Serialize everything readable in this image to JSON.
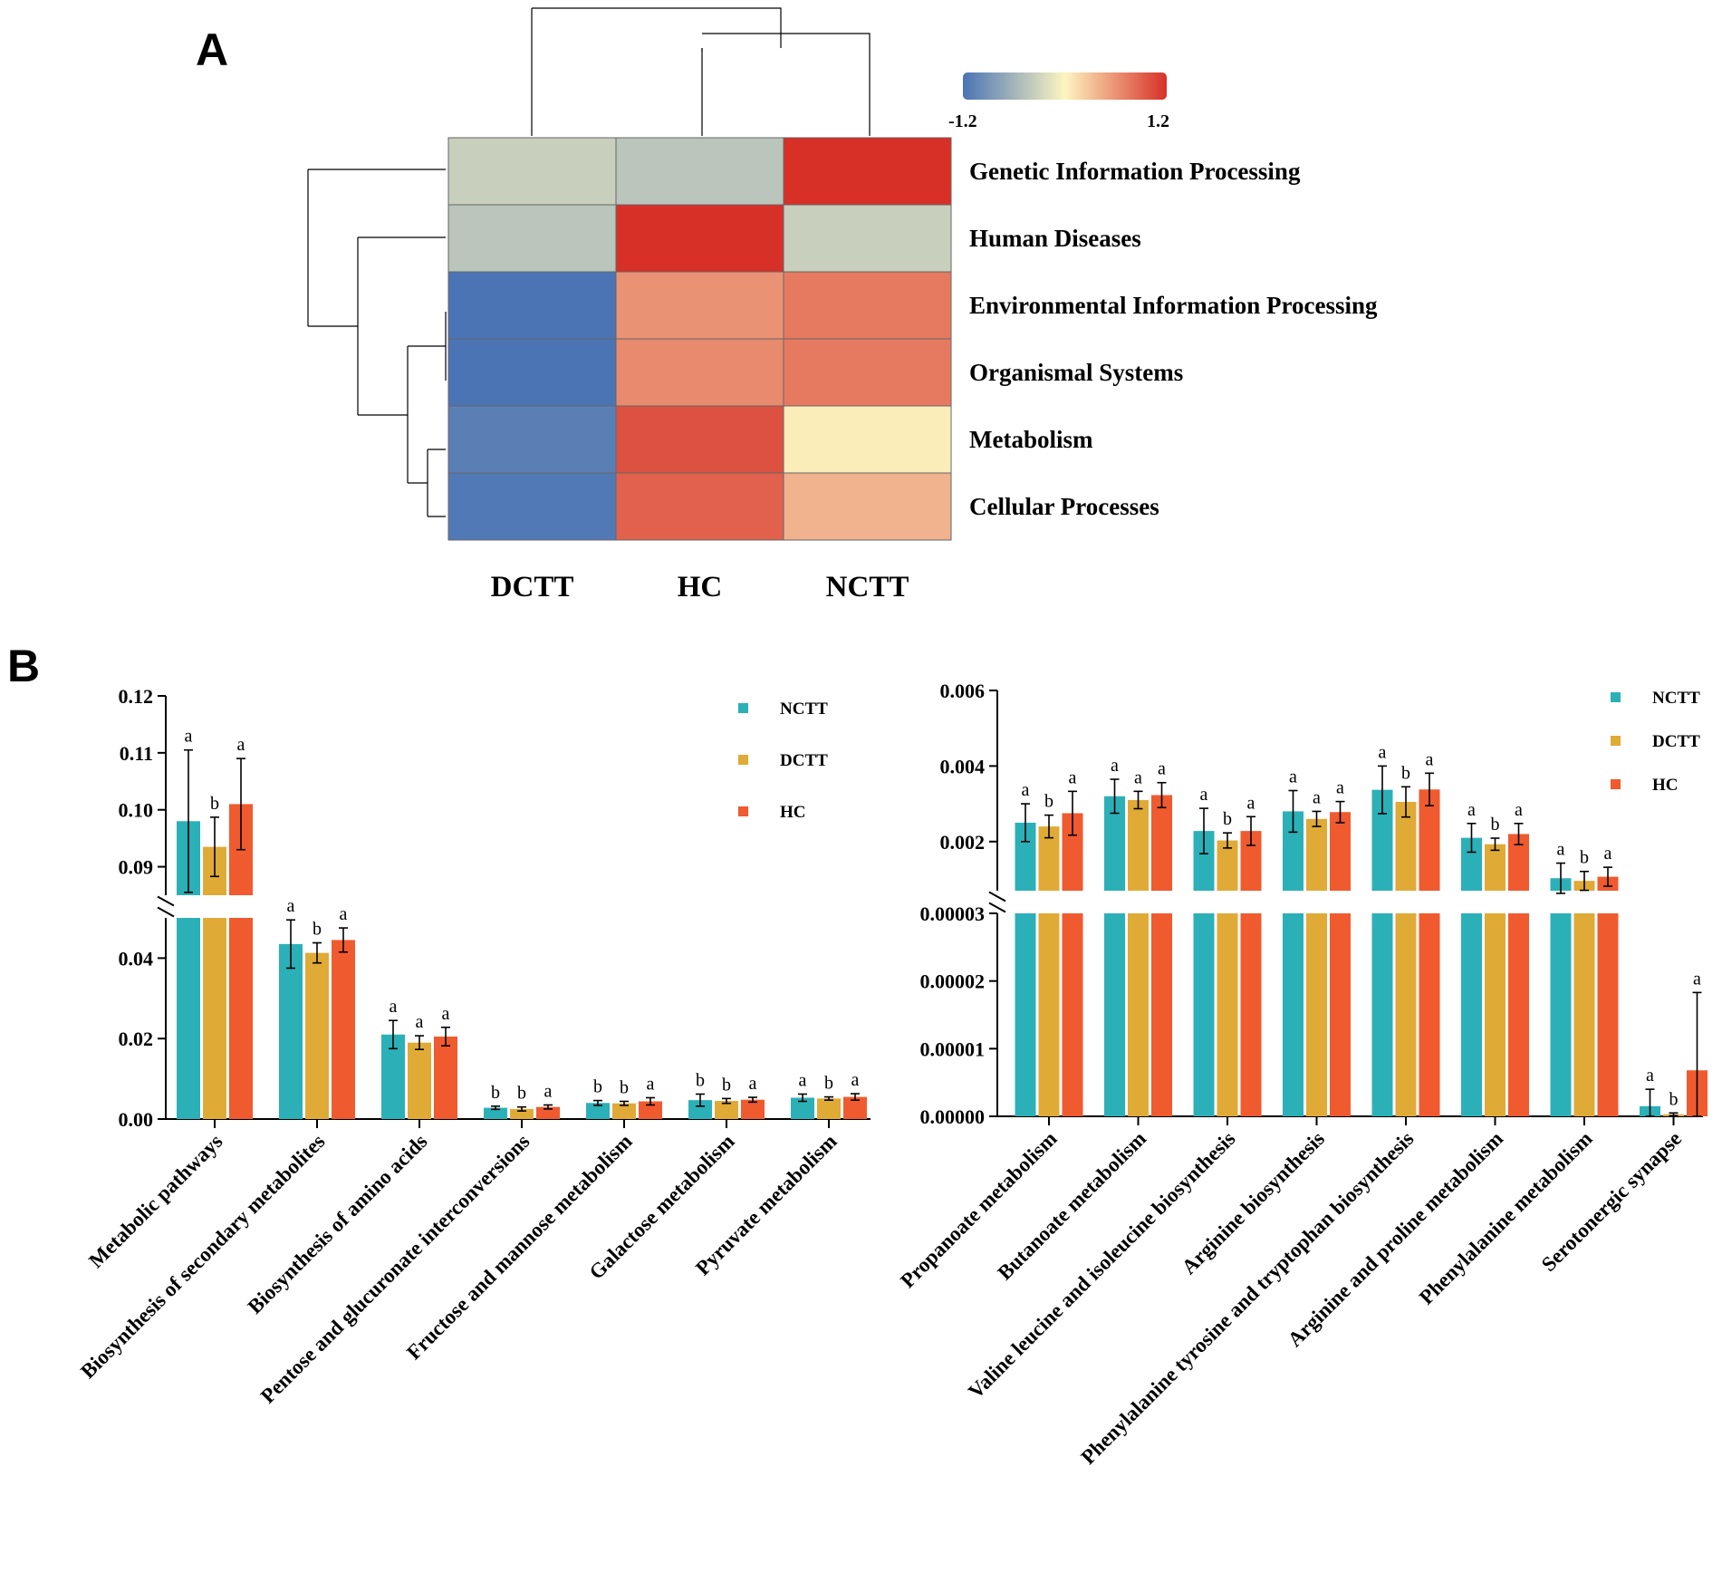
{
  "panels": {
    "a_label": "A",
    "b_label": "B"
  },
  "heatmap": {
    "columns": [
      "DCTT",
      "HC",
      "NCTT"
    ],
    "rows": [
      "Genetic Information Processing",
      "Human Diseases",
      "Environmental Information Processing",
      "Organismal Systems",
      "Metabolism",
      "Cellular Processes"
    ],
    "values": [
      [
        -0.35,
        -0.45,
        1.2
      ],
      [
        -0.45,
        1.2,
        -0.35
      ],
      [
        -1.2,
        0.6,
        0.75
      ],
      [
        -1.2,
        0.65,
        0.75
      ],
      [
        -1.1,
        1.0,
        0.05
      ],
      [
        -1.15,
        0.9,
        0.4
      ]
    ],
    "colorbar": {
      "min_label": "-1.2",
      "max_label": "1.2",
      "colors": [
        "#4a74b4",
        "#fdf5c0",
        "#d73027"
      ]
    }
  },
  "chart_data": [
    {
      "type": "bar",
      "title": "",
      "xlabel": "",
      "ylabel": "",
      "y_segments": [
        {
          "range": [
            0.0,
            0.05
          ],
          "ticks": [
            "0.00",
            "0.02",
            "0.04"
          ],
          "tick_values": [
            0.0,
            0.02,
            0.04
          ]
        },
        {
          "range": [
            0.085,
            0.12
          ],
          "ticks": [
            "0.09",
            "0.10",
            "0.11",
            "0.12"
          ],
          "tick_values": [
            0.09,
            0.1,
            0.11,
            0.12
          ]
        }
      ],
      "categories": [
        "Metabolic pathways",
        "Biosynthesis of secondary metabolites",
        "Biosynthesis of amino acids",
        "Pentose and glucuronate interconversions",
        "Fructose and mannose metabolism",
        "Galactose metabolism",
        "Pyruvate metabolism"
      ],
      "series": [
        {
          "name": "NCTT",
          "color": "#2bb0b8",
          "values": [
            0.098,
            0.0435,
            0.021,
            0.0028,
            0.004,
            0.0047,
            0.0053
          ],
          "errors": [
            0.0125,
            0.006,
            0.0035,
            0.0004,
            0.0006,
            0.0015,
            0.0009
          ],
          "letters": [
            "a",
            "a",
            "a",
            "b",
            "b",
            "b",
            "a"
          ]
        },
        {
          "name": "DCTT",
          "color": "#e0aa36",
          "values": [
            0.0935,
            0.0413,
            0.019,
            0.0025,
            0.0039,
            0.0045,
            0.0051
          ],
          "errors": [
            0.0052,
            0.0025,
            0.0017,
            0.0005,
            0.0005,
            0.0006,
            0.0004
          ],
          "letters": [
            "b",
            "b",
            "a",
            "b",
            "b",
            "b",
            "b"
          ]
        },
        {
          "name": "HC",
          "color": "#f05a2f",
          "values": [
            0.101,
            0.0445,
            0.0205,
            0.003,
            0.0044,
            0.0048,
            0.0055
          ],
          "errors": [
            0.008,
            0.003,
            0.0023,
            0.0005,
            0.0009,
            0.0006,
            0.0008
          ],
          "letters": [
            "a",
            "a",
            "a",
            "a",
            "a",
            "a",
            "a"
          ]
        }
      ],
      "legend": [
        "NCTT",
        "DCTT",
        "HC"
      ],
      "legend_position": "top-right"
    },
    {
      "type": "bar",
      "title": "",
      "xlabel": "",
      "ylabel": "",
      "y_segments": [
        {
          "range": [
            0.0,
            3e-05
          ],
          "ticks": [
            "0.00000",
            "0.00001",
            "0.00002",
            "0.00003"
          ],
          "tick_values": [
            0.0,
            1e-05,
            2e-05,
            3e-05
          ]
        },
        {
          "range": [
            0.0007,
            0.006
          ],
          "ticks": [
            "0.002",
            "0.004",
            "0.006"
          ],
          "tick_values": [
            0.002,
            0.004,
            0.006
          ]
        }
      ],
      "categories": [
        "Propanoate metabolism",
        "Butanoate metabolism",
        "Valine leucine and isoleucine biosynthesis",
        "Arginine biosynthesis",
        "Phenylalanine tyrosine and tryptophan biosynthesis",
        "Arginine and proline metabolism",
        "Phenylalanine metabolism",
        "Serotonergic synapse"
      ],
      "series": [
        {
          "name": "NCTT",
          "color": "#2bb0b8",
          "values": [
            0.0025,
            0.0032,
            0.00228,
            0.0028,
            0.00337,
            0.0021,
            0.00103,
            1.5e-06
          ],
          "errors": [
            0.0005,
            0.00045,
            0.0006,
            0.00055,
            0.00063,
            0.00038,
            0.0004,
            2.5e-06
          ],
          "letters": [
            "a",
            "a",
            "a",
            "a",
            "a",
            "a",
            "a",
            "a"
          ]
        },
        {
          "name": "DCTT",
          "color": "#e0aa36",
          "values": [
            0.0024,
            0.0031,
            0.00203,
            0.0026,
            0.00305,
            0.00193,
            0.00096,
            3e-07
          ],
          "errors": [
            0.0003,
            0.00023,
            0.0002,
            0.0002,
            0.0004,
            0.00016,
            0.00025,
            2e-07
          ],
          "letters": [
            "b",
            "a",
            "b",
            "a",
            "b",
            "b",
            "b",
            "b"
          ]
        },
        {
          "name": "HC",
          "color": "#f05a2f",
          "values": [
            0.00275,
            0.00323,
            0.00228,
            0.00278,
            0.00338,
            0.0022,
            0.00107,
            6.8e-06
          ],
          "errors": [
            0.00058,
            0.00033,
            0.00038,
            0.00028,
            0.00043,
            0.00028,
            0.00025,
            1.15e-05
          ],
          "letters": [
            "a",
            "a",
            "a",
            "a",
            "a",
            "a",
            "a",
            "a"
          ]
        }
      ],
      "legend": [
        "NCTT",
        "DCTT",
        "HC"
      ],
      "legend_position": "top-right"
    }
  ]
}
